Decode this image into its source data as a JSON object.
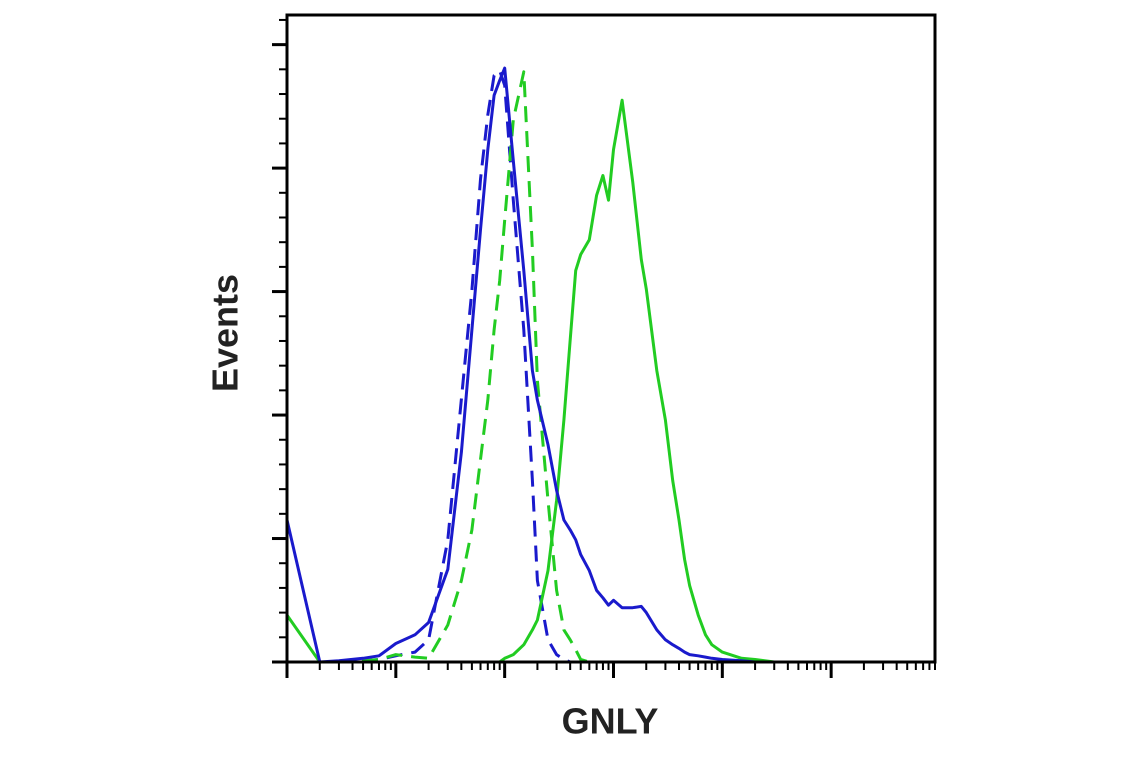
{
  "chart_data": {
    "type": "line",
    "x_label": "GNLY",
    "y_label": "Events",
    "x_scale": "log",
    "xlim": [
      1,
      900000
    ],
    "ylim": [
      0,
      524
    ],
    "xticks": [
      1,
      10,
      100,
      1000,
      10000,
      100000
    ],
    "xminor_ticks": [
      2,
      3,
      4,
      5,
      6,
      7,
      8,
      9,
      20,
      30,
      40,
      50,
      60,
      70,
      80,
      90,
      200,
      300,
      400,
      500,
      600,
      700,
      800,
      900,
      2000,
      3000,
      4000,
      5000,
      6000,
      7000,
      8000,
      9000,
      20000,
      30000,
      40000,
      50000,
      60000,
      70000,
      80000,
      90000,
      200000,
      300000,
      400000,
      500000,
      600000,
      700000,
      800000,
      900000
    ],
    "yticks": [
      0,
      100,
      200,
      300,
      400,
      500
    ],
    "yminor_ticks": [
      20,
      40,
      60,
      80,
      120,
      140,
      160,
      180,
      220,
      240,
      260,
      280,
      320,
      340,
      360,
      380,
      420,
      440,
      460,
      480,
      520
    ],
    "x": [
      1,
      2,
      3,
      5,
      7,
      10,
      15,
      20,
      30,
      40,
      50,
      60,
      70,
      80,
      90,
      100,
      120,
      150,
      180,
      200,
      250,
      300,
      350,
      400,
      450,
      500,
      600,
      700,
      800,
      900,
      1000,
      1200,
      1500,
      1800,
      2000,
      2500,
      3000,
      3500,
      4000,
      4500,
      5000,
      6000,
      7000,
      8000,
      10000,
      15000,
      20000,
      30000,
      50000,
      100000,
      200000,
      500000,
      900000
    ],
    "series": [
      {
        "color": "#1a1acc",
        "dashed": true,
        "values": [
          0,
          0,
          0,
          1,
          2,
          5,
          8,
          18,
          99,
          213,
          301,
          391,
          443,
          475,
          479,
          467,
          374,
          269,
          147,
          66,
          18,
          6,
          2,
          0,
          0,
          0,
          0,
          0,
          0,
          0,
          0,
          0,
          0,
          0,
          0,
          0,
          0,
          0,
          0,
          0,
          0,
          0,
          0,
          0,
          0,
          0,
          0,
          0,
          0,
          0,
          0,
          0,
          0
        ]
      },
      {
        "color": "#22cc22",
        "dashed": true,
        "values": [
          0,
          0,
          0,
          1,
          2,
          6,
          4,
          3,
          30,
          66,
          107,
          164,
          212,
          269,
          309,
          358,
          439,
          478,
          334,
          228,
          131,
          58,
          26,
          18,
          10,
          2,
          0,
          0,
          0,
          0,
          0,
          0,
          0,
          0,
          0,
          0,
          0,
          0,
          0,
          0,
          0,
          0,
          0,
          0,
          0,
          0,
          0,
          0,
          0,
          0,
          0,
          0,
          0
        ]
      },
      {
        "color": "#22cc22",
        "dashed": false,
        "values": [
          38,
          0,
          0,
          0,
          0,
          0,
          0,
          0,
          0,
          0,
          0,
          0,
          0,
          0,
          0,
          3,
          6,
          14,
          26,
          34,
          74,
          131,
          196,
          261,
          317,
          330,
          342,
          378,
          394,
          374,
          415,
          455,
          389,
          326,
          302,
          236,
          196,
          147,
          115,
          83,
          62,
          38,
          22,
          14,
          8,
          3,
          2,
          0,
          0,
          0,
          0,
          0,
          0
        ]
      },
      {
        "color": "#1a1acc",
        "dashed": false,
        "values": [
          115,
          0,
          1,
          3,
          5,
          15,
          22,
          32,
          75,
          170,
          269,
          350,
          415,
          459,
          471,
          481,
          406,
          317,
          236,
          212,
          176,
          139,
          115,
          107,
          99,
          87,
          74,
          58,
          52,
          46,
          50,
          44,
          44,
          45,
          40,
          26,
          18,
          14,
          11,
          8,
          6,
          5,
          4,
          3,
          2,
          1,
          0,
          0,
          0,
          0,
          0,
          0,
          0
        ]
      }
    ]
  }
}
